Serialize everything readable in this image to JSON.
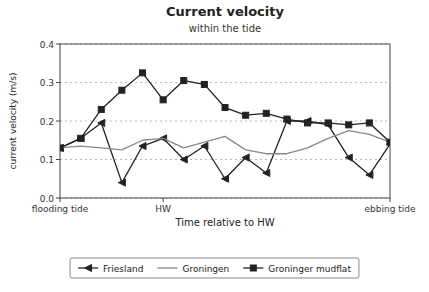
{
  "chart_data": {
    "type": "line",
    "title": "Current velocity",
    "subtitle": "within the tide",
    "xlabel": "Time relative to HW",
    "ylabel": "current velocity (m/s)",
    "x": [
      0,
      1,
      2,
      3,
      4,
      5,
      6,
      7,
      8,
      9,
      10,
      11,
      12,
      13,
      14,
      15,
      16
    ],
    "xlim": [
      0,
      16
    ],
    "xticks": [
      {
        "value": 0,
        "label": "flooding tide"
      },
      {
        "value": 5,
        "label": "HW"
      },
      {
        "value": 16,
        "label": "ebbing tide"
      }
    ],
    "ylim": [
      0,
      0.4
    ],
    "yticks": [
      {
        "value": 0,
        "label": "0.0"
      },
      0.1,
      0.2,
      0.3,
      0.4
    ],
    "grid": true,
    "legend": "bottom",
    "series": [
      {
        "name": "Friesland",
        "color": "#222222",
        "marker": "triangle-left",
        "line_style": "solid",
        "values": [
          0.13,
          0.155,
          0.195,
          0.04,
          0.135,
          0.155,
          0.1,
          0.135,
          0.05,
          0.105,
          0.065,
          0.2,
          0.2,
          0.19,
          0.105,
          0.06,
          0.14
        ]
      },
      {
        "name": "Groningen",
        "color": "#888888",
        "marker": "none",
        "line_style": "solid",
        "values": [
          0.13,
          0.135,
          0.13,
          0.125,
          0.15,
          0.155,
          0.13,
          0.145,
          0.16,
          0.125,
          0.115,
          0.115,
          0.13,
          0.155,
          0.175,
          0.165,
          0.145
        ]
      },
      {
        "name": "Groninger mudflat",
        "color": "#222222",
        "marker": "square",
        "line_style": "solid",
        "values": [
          0.13,
          0.155,
          0.23,
          0.28,
          0.325,
          0.255,
          0.305,
          0.295,
          0.235,
          0.215,
          0.22,
          0.205,
          0.195,
          0.195,
          0.19,
          0.195,
          0.145
        ]
      }
    ]
  }
}
